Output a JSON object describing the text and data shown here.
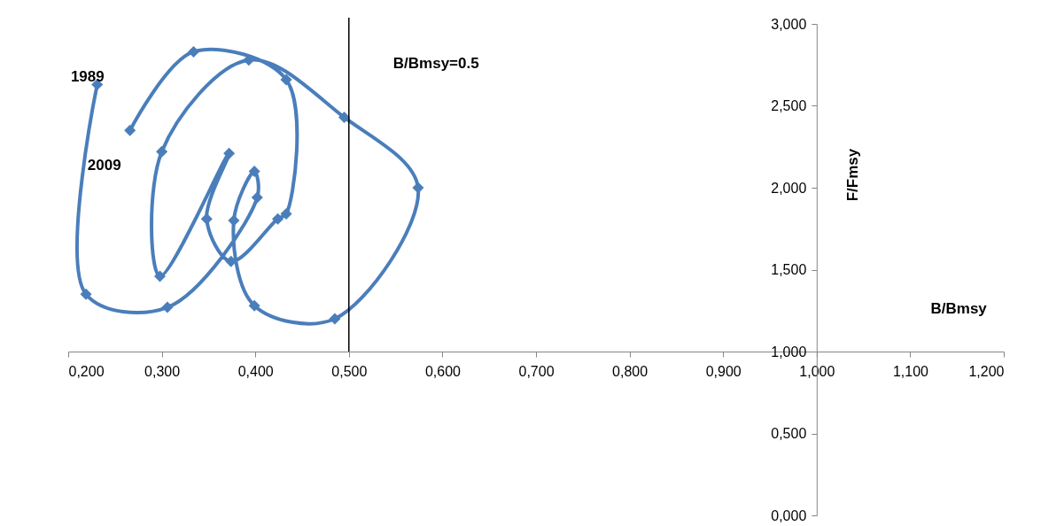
{
  "chart_data": {
    "type": "line",
    "xlabel": "B/Bmsy",
    "ylabel": "F/Fmsy",
    "x": [
      0.231,
      0.219,
      0.306,
      0.402,
      0.399,
      0.377,
      0.399,
      0.485,
      0.574,
      0.495,
      0.393,
      0.3,
      0.298,
      0.372,
      0.348,
      0.374,
      0.424,
      0.433,
      0.433,
      0.334,
      0.266
    ],
    "series": [
      {
        "color": "#4a7ebb",
        "values": [
          2.63,
          1.35,
          1.27,
          1.94,
          2.1,
          1.8,
          1.28,
          1.2,
          2.0,
          2.43,
          2.78,
          2.22,
          1.46,
          2.21,
          1.81,
          1.55,
          1.81,
          1.84,
          2.66,
          2.83,
          2.35
        ]
      }
    ],
    "xlim": [
      0.2,
      1.2
    ],
    "xticks": [
      {
        "value": 0.2,
        "label": "0,200"
      },
      {
        "value": 0.3,
        "label": "0,300"
      },
      {
        "value": 0.4,
        "label": "0,400"
      },
      {
        "value": 0.5,
        "label": "0,500"
      },
      {
        "value": 0.6,
        "label": "0,600"
      },
      {
        "value": 0.7,
        "label": "0,700"
      },
      {
        "value": 0.8,
        "label": "0,800"
      },
      {
        "value": 0.9,
        "label": "0,900"
      },
      {
        "value": 1.0,
        "label": "1,000"
      },
      {
        "value": 1.1,
        "label": "1,100"
      },
      {
        "value": 1.2,
        "label": "1,200"
      }
    ],
    "ylim": [
      0,
      3
    ],
    "yticks": [
      {
        "value": 0,
        "label": "0,000"
      },
      {
        "value": 0.5,
        "label": "0,500"
      },
      {
        "value": 1.0,
        "label": "1,000"
      },
      {
        "value": 1.5,
        "label": "1,500"
      },
      {
        "value": 2.0,
        "label": "2,000"
      },
      {
        "value": 2.5,
        "label": "2,500"
      },
      {
        "value": 3.0,
        "label": "3,000"
      }
    ],
    "ref_lines": [
      {
        "axis": "x",
        "value": 0.5,
        "label": "B/Bmsy=0.5",
        "color": "#000000"
      }
    ],
    "annotations": [
      {
        "text": "1989",
        "x": 0.231,
        "y": 2.63
      },
      {
        "text": "2009",
        "x": 0.266,
        "y": 2.35
      }
    ],
    "marker": "diamond",
    "grid": false
  }
}
